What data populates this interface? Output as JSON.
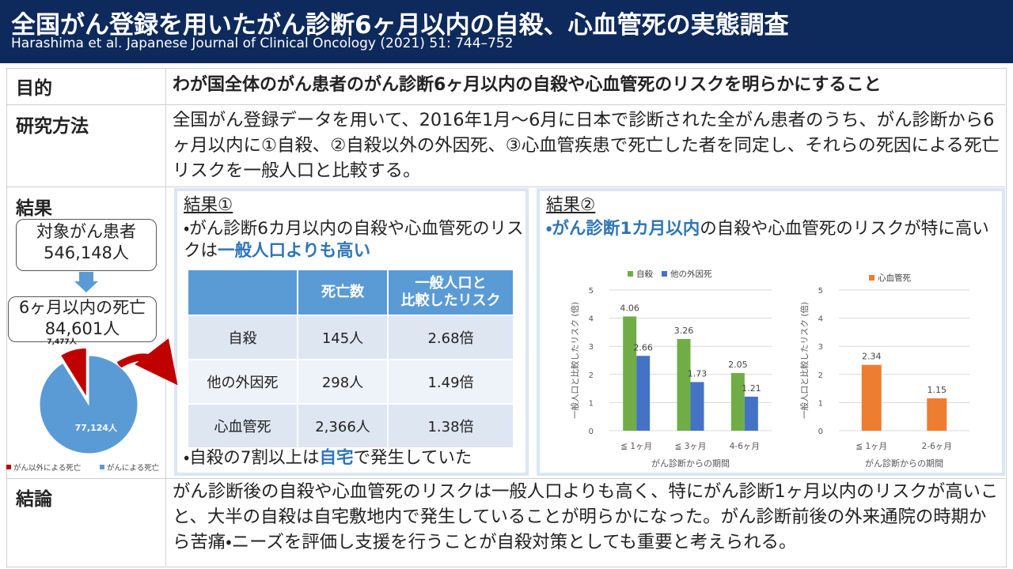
{
  "header": {
    "title": "全国がん登録を用いたがん診断6ヶ月以内の自殺、心血管死の実態調査",
    "subtitle": "Harashima et al. Japanese Journal of Clinical Oncology (2021) 51: 744–752"
  },
  "purpose": {
    "label": "目的",
    "text": "わが国全体のがん患者のがん診断6ヶ月以内の自殺や心血管死のリスクを明らかにすること"
  },
  "methods": {
    "label": "研究方法",
    "text": "全国がん登録データを用いて、2016年1月～6月に日本で診断された全がん患者のうち、がん診断から6ヶ月以内に①自殺、②自殺以外の外因死、③心血管疾患で死亡した者を同定し、それらの死因による死亡リスクを一般人口と比較する。"
  },
  "results": {
    "label": "結果",
    "flow": [
      {
        "label": "対象がん患者",
        "value": "546,148人"
      },
      {
        "label": "6ヶ月以内の死亡",
        "value": "84,601人"
      }
    ],
    "result1": {
      "title": "結果①",
      "lead": "・がん診断6カ月以内の自殺や心血管死のリスクは",
      "highlight": "一般人口よりも高い",
      "table": {
        "header": [
          "死亡数",
          "一般人口と\n比較したリスク"
        ],
        "rows": [
          [
            "自殺",
            "145人",
            "2.68倍"
          ],
          [
            "他の外因死",
            "298人",
            "1.49倍"
          ],
          [
            "心血管死",
            "2,366人",
            "1.38倍"
          ]
        ]
      },
      "note": {
        "before": "・自殺の7割以上は",
        "highlight": "自宅",
        "after": "で発生していた"
      }
    },
    "result2": {
      "title": "結果②",
      "bullet": "・",
      "highlight": "がん診断1カ月以内",
      "text": "の自殺や心血管死のリスクが特に高い"
    }
  },
  "conclusion": {
    "label": "結論",
    "text": "がん診断後の自殺や心血管死のリスクは一般人口よりも高く、特にがん診断1ヶ月以内のリスクが高いこと、大半の自殺は自宅敷地内で発生していることが明らかになった。がん診断前後の外来通院の時期から苦痛・ニーズを評価し支援を行うことが自殺対策としても重要と考えられる。"
  },
  "chart_data": [
    {
      "type": "pie",
      "labels": [
        "がん以外による死亡",
        "がんによる死亡"
      ],
      "values": [
        7477,
        77124
      ],
      "value_labels": [
        "7,477人",
        "77,124人"
      ],
      "colors": [
        "#c00000",
        "#5b9bd5"
      ]
    },
    {
      "type": "bar",
      "categories": [
        "≦ 1ヶ月",
        "≦ 3ヶ月",
        "4-6ヶ月"
      ],
      "series": [
        {
          "name": "自殺",
          "color": "#70ad47",
          "values": [
            4.06,
            3.26,
            2.05
          ]
        },
        {
          "name": "他の外因死",
          "color": "#4472c4",
          "values": [
            2.66,
            1.73,
            1.21
          ]
        }
      ],
      "ylim": [
        0,
        5
      ],
      "yticks": [
        0,
        1,
        2,
        3,
        4,
        5
      ],
      "ylabel": "一般人口と比較したリスク (倍)",
      "xlabel": "がん診断からの期間",
      "grid": true
    },
    {
      "type": "bar",
      "categories": [
        "≦ 1ヶ月",
        "2-6ヶ月"
      ],
      "series": [
        {
          "name": "心血管死",
          "color": "#ed7d31",
          "values": [
            2.34,
            1.15
          ]
        }
      ],
      "ylim": [
        0,
        5
      ],
      "yticks": [
        0,
        1,
        2,
        3,
        4,
        5
      ],
      "ylabel": "一般人口と比較したリスク (倍)",
      "xlabel": "がん診断からの期間",
      "grid": true
    }
  ]
}
